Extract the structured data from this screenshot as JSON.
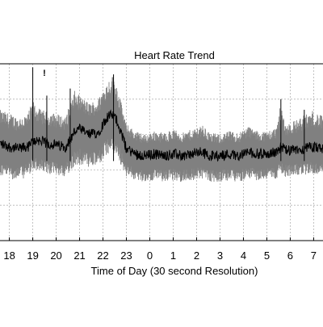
{
  "chart_data": {
    "type": "line",
    "title": "Heart Rate Trend",
    "xlabel": "Time of Day (30 second Resolution)",
    "ylabel": "",
    "x_tick_labels": [
      "18",
      "19",
      "20",
      "21",
      "22",
      "23",
      "0",
      "1",
      "2",
      "3",
      "4",
      "5",
      "6",
      "7"
    ],
    "x_range_hours": [
      17.6,
      31.4
    ],
    "y_range_relative": [
      0,
      1
    ],
    "grid": true,
    "legend": "none",
    "annotation": "!",
    "colors": {
      "band": "#808080",
      "trend": "#000000",
      "grid": "#b4b4b4",
      "axes": "#000000"
    },
    "series": [
      {
        "x": [
          17.6,
          18.0,
          18.4,
          18.8,
          19.0,
          19.2,
          19.6,
          20.0,
          20.4,
          20.6,
          20.8,
          21.0,
          21.4,
          21.8,
          22.0,
          22.2,
          22.4,
          22.6,
          22.8,
          23.0,
          23.4,
          23.8,
          24.2,
          24.6,
          25.0,
          25.4,
          25.8,
          26.2,
          26.6,
          27.0,
          27.4,
          27.8,
          28.2,
          28.6,
          29.0,
          29.4,
          29.6,
          29.8,
          30.2,
          30.6,
          31.0,
          31.4
        ],
        "center": [
          0.55,
          0.53,
          0.52,
          0.53,
          0.56,
          0.57,
          0.55,
          0.54,
          0.53,
          0.57,
          0.62,
          0.63,
          0.6,
          0.61,
          0.66,
          0.7,
          0.71,
          0.68,
          0.6,
          0.52,
          0.49,
          0.48,
          0.49,
          0.48,
          0.49,
          0.48,
          0.49,
          0.5,
          0.48,
          0.48,
          0.49,
          0.48,
          0.5,
          0.49,
          0.49,
          0.5,
          0.53,
          0.51,
          0.51,
          0.52,
          0.53,
          0.52
        ],
        "upper": [
          0.74,
          0.72,
          0.7,
          0.72,
          0.8,
          0.75,
          0.73,
          0.72,
          0.7,
          0.78,
          0.85,
          0.82,
          0.78,
          0.8,
          0.86,
          0.9,
          0.94,
          0.88,
          0.77,
          0.66,
          0.62,
          0.6,
          0.62,
          0.61,
          0.63,
          0.61,
          0.63,
          0.66,
          0.61,
          0.6,
          0.62,
          0.61,
          0.65,
          0.62,
          0.62,
          0.64,
          0.78,
          0.66,
          0.68,
          0.71,
          0.74,
          0.7
        ],
        "lower": [
          0.36,
          0.35,
          0.34,
          0.36,
          0.4,
          0.39,
          0.37,
          0.37,
          0.36,
          0.38,
          0.42,
          0.43,
          0.41,
          0.42,
          0.45,
          0.48,
          0.5,
          0.47,
          0.42,
          0.36,
          0.34,
          0.33,
          0.34,
          0.33,
          0.34,
          0.33,
          0.34,
          0.35,
          0.33,
          0.33,
          0.34,
          0.33,
          0.35,
          0.34,
          0.34,
          0.35,
          0.38,
          0.36,
          0.37,
          0.37,
          0.38,
          0.37
        ]
      }
    ]
  }
}
